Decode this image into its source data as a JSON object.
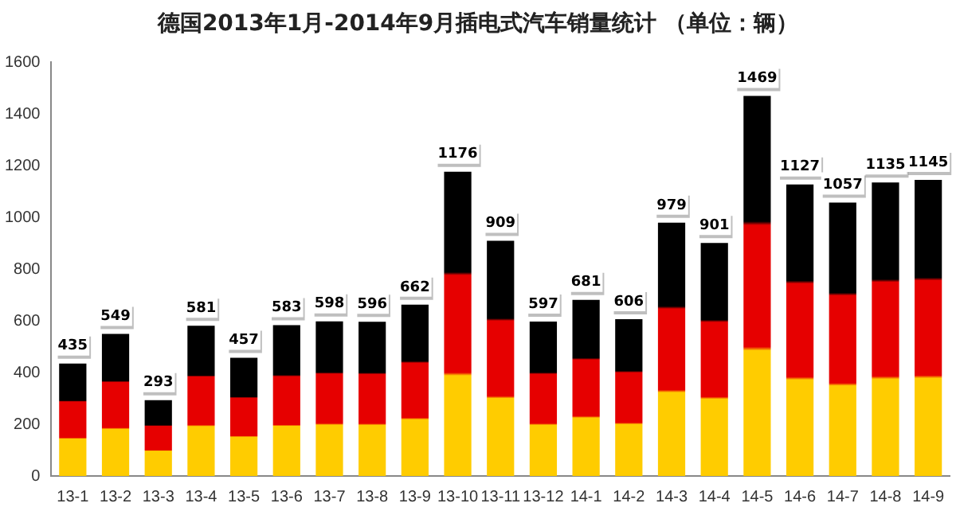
{
  "chart_data": {
    "type": "bar",
    "title": "德国2013年1月-2014年9月插电式汽车销量统计 （单位：辆）",
    "categories": [
      "13-1",
      "13-2",
      "13-3",
      "13-4",
      "13-5",
      "13-6",
      "13-7",
      "13-8",
      "13-9",
      "13-10",
      "13-11",
      "13-12",
      "14-1",
      "14-2",
      "14-3",
      "14-4",
      "14-5",
      "14-6",
      "14-7",
      "14-8",
      "14-9"
    ],
    "values": [
      435,
      549,
      293,
      581,
      457,
      583,
      598,
      596,
      662,
      1176,
      909,
      597,
      681,
      606,
      979,
      901,
      1469,
      1127,
      1057,
      1135,
      1145
    ],
    "color": "#e60000",
    "ylim": [
      0,
      1600
    ],
    "yticks": [
      0,
      200,
      400,
      600,
      800,
      1000,
      1200,
      1400,
      1600
    ],
    "grid": false,
    "legend": false,
    "data_labels": true
  }
}
